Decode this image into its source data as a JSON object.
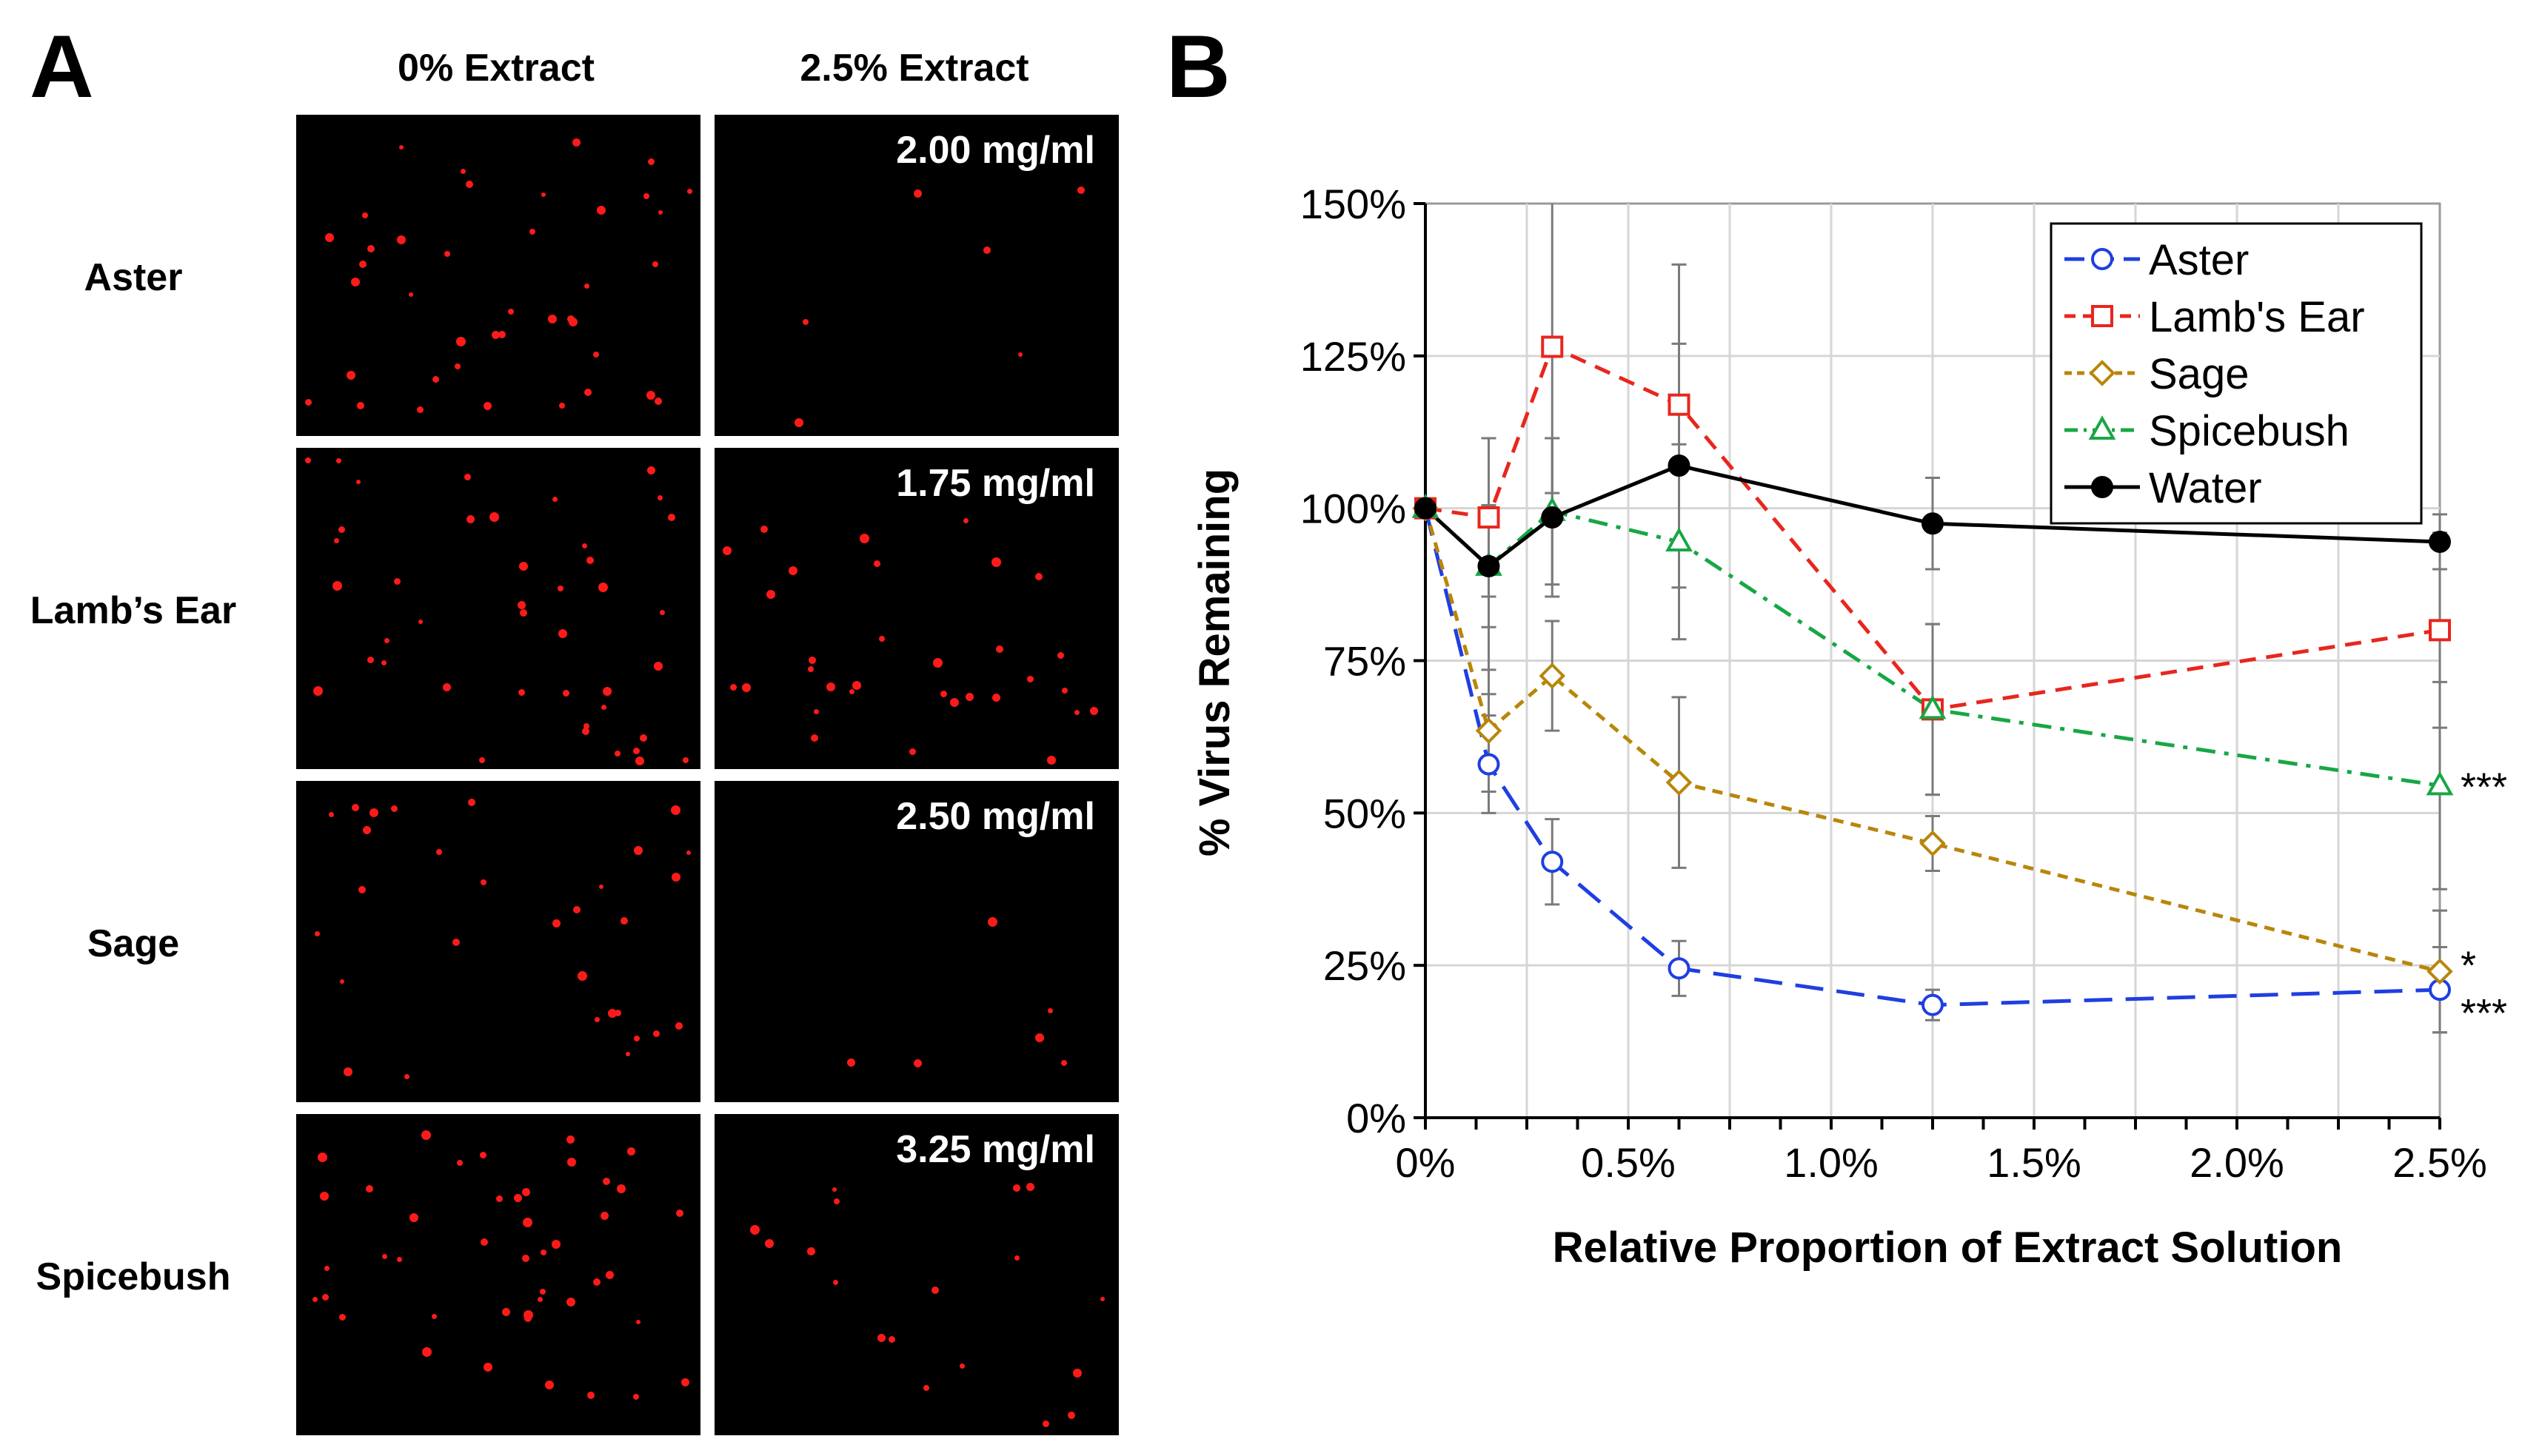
{
  "panel_a": {
    "letter": "A",
    "column_headers": [
      "0% Extract",
      "2.5% Extract"
    ],
    "rows": [
      {
        "label": "Aster",
        "concentration": "2.00 mg/ml"
      },
      {
        "label": "Lamb’s Ear",
        "concentration": "1.75 mg/ml"
      },
      {
        "label": "Sage",
        "concentration": "2.50 mg/ml"
      },
      {
        "label": "Spicebush",
        "concentration": "3.25 mg/ml"
      }
    ],
    "spot_color": "#ff1a1a",
    "background_color": "#000000"
  },
  "panel_b": {
    "letter": "B"
  },
  "chart_data": {
    "type": "line",
    "xlabel": "Relative Proportion of Extract Solution",
    "ylabel": "% Virus Remaining",
    "xlim": [
      0,
      2.5
    ],
    "ylim": [
      0,
      150
    ],
    "x_ticks": [
      0,
      0.5,
      1.0,
      1.5,
      2.0,
      2.5
    ],
    "x_tick_labels": [
      "0%",
      "0.5%",
      "1.0%",
      "1.5%",
      "2.0%",
      "2.5%"
    ],
    "y_ticks": [
      0,
      25,
      50,
      75,
      100,
      125,
      150
    ],
    "y_tick_labels": [
      "0%",
      "25%",
      "50%",
      "75%",
      "100%",
      "125%",
      "150%"
    ],
    "grid": true,
    "legend_position": "top-right",
    "x": [
      0,
      0.156,
      0.3125,
      0.625,
      1.25,
      2.5
    ],
    "series": [
      {
        "name": "Aster",
        "color": "#1f3fe0",
        "marker": "circle-open",
        "dash": "long-dash",
        "values": [
          100,
          58,
          42,
          24.5,
          18.5,
          21
        ],
        "errors": [
          0,
          8,
          7,
          4.5,
          2.5,
          7
        ],
        "significance": "***"
      },
      {
        "name": "Lamb's Ear",
        "color": "#e8261e",
        "marker": "square-open",
        "dash": "dash",
        "values": [
          100,
          98.5,
          126.5,
          117,
          67,
          80
        ],
        "errors": [
          0,
          13,
          24,
          23,
          14,
          16
        ],
        "significance": ""
      },
      {
        "name": "Sage",
        "color": "#b8860b",
        "marker": "diamond-open",
        "dash": "short-dash",
        "values": [
          100,
          63.5,
          72.5,
          55,
          45,
          24
        ],
        "errors": [
          0,
          10,
          9,
          14,
          4.5,
          10
        ],
        "significance": "*"
      },
      {
        "name": "Spicebush",
        "color": "#17a745",
        "marker": "triangle-open",
        "dash": "dash-dot",
        "values": [
          100,
          90.5,
          99.5,
          94.5,
          67,
          54.5
        ],
        "errors": [
          0,
          10,
          12,
          16,
          14,
          17
        ],
        "significance": "***"
      },
      {
        "name": "Water",
        "color": "#000000",
        "marker": "circle-filled",
        "dash": "solid",
        "values": [
          100,
          90.5,
          98.5,
          107,
          97.5,
          94.5
        ],
        "errors": [
          0,
          21,
          13,
          20,
          7.5,
          4.5
        ],
        "significance": ""
      }
    ]
  }
}
